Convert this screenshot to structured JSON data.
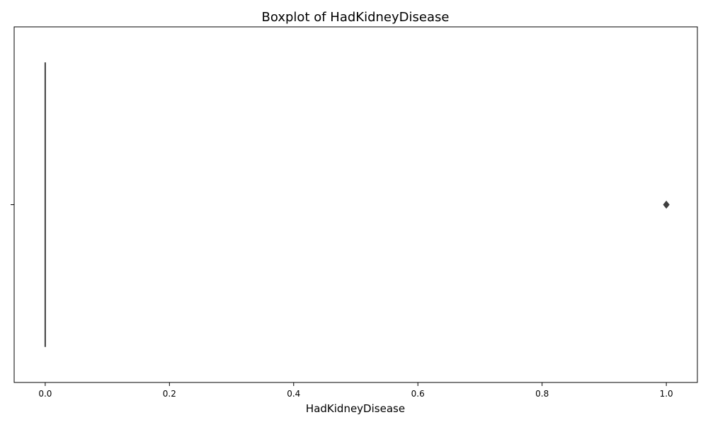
{
  "chart_data": {
    "type": "boxplot",
    "title": "Boxplot of HadKidneyDisease",
    "xlabel": "HadKidneyDisease",
    "ylabel": "",
    "orientation": "horizontal",
    "xlim": [
      -0.05,
      1.05
    ],
    "x_ticks": [
      0.0,
      0.2,
      0.4,
      0.6,
      0.8,
      1.0
    ],
    "x_tick_labels": [
      "0.0",
      "0.2",
      "0.4",
      "0.6",
      "0.8",
      "1.0"
    ],
    "y_ticks": [
      ""
    ],
    "grid": false,
    "series": [
      {
        "min": 0.0,
        "q1": 0.0,
        "median": 0.0,
        "q3": 0.0,
        "max": 0.0,
        "outliers": [
          1.0
        ]
      }
    ],
    "colors": {
      "box_line": "#3f3f3f",
      "outlier": "#3f3f3f",
      "axes": "#000000"
    }
  }
}
